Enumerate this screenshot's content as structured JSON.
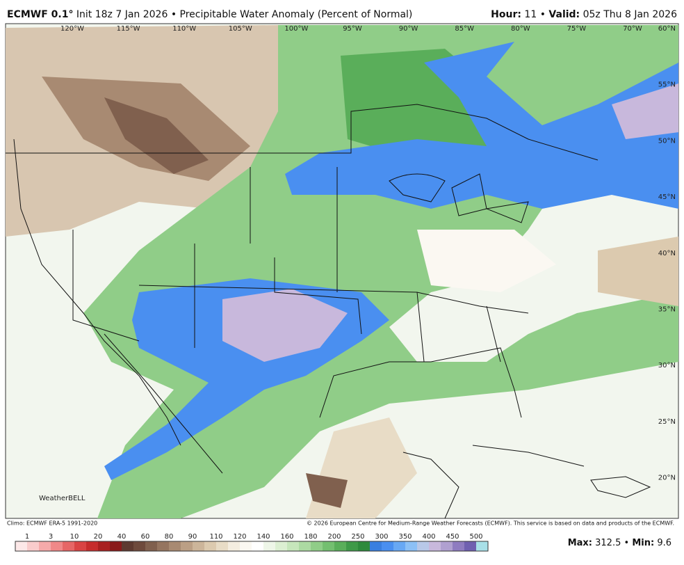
{
  "header": {
    "model": "ECMWF 0.1°",
    "title": "Init 18z 7 Jan 2026 • Precipitable Water Anomaly (Percent of Normal)",
    "hour_label": "Hour:",
    "hour": "11",
    "separator": "•",
    "valid_label": "Valid:",
    "valid": "05z Thu 8 Jan 2026"
  },
  "map": {
    "lon_labels": [
      "120°W",
      "115°W",
      "110°W",
      "105°W",
      "100°W",
      "95°W",
      "90°W",
      "85°W",
      "80°W",
      "75°W",
      "70°W"
    ],
    "lat_labels": [
      "60°N",
      "55°N",
      "50°N",
      "45°N",
      "40°N",
      "35°N",
      "30°N",
      "25°N",
      "20°N"
    ],
    "logo": "WeatherBELL"
  },
  "footer": {
    "climo": "Climo: ECMWF ERA-5 1991-2020",
    "copyright": "© 2026 European Centre for Medium-Range Weather Forecasts (ECMWF). This service is based on data and products of the ECMWF.",
    "max_label": "Max:",
    "max": "312.5",
    "min_label": "Min:",
    "min": "9.6"
  },
  "colorbar": {
    "ticks": [
      1,
      3,
      10,
      20,
      40,
      60,
      80,
      90,
      110,
      120,
      140,
      160,
      180,
      200,
      250,
      300,
      350,
      400,
      450,
      500
    ],
    "colors": [
      "#fde8e8",
      "#f9cccc",
      "#f5aaaa",
      "#f08888",
      "#e66666",
      "#d94444",
      "#c62d2d",
      "#a82020",
      "#8a1a1a",
      "#5e3a30",
      "#6e4a3c",
      "#80604e",
      "#957560",
      "#a88a72",
      "#bb9f85",
      "#ccb59a",
      "#dccaaf",
      "#e8dcc6",
      "#f4ede0",
      "#fbf8f2",
      "#ffffff",
      "#eef6e8",
      "#dcefd2",
      "#c6e6bb",
      "#acdaa2",
      "#90cd88",
      "#74bf70",
      "#5aae5a",
      "#3f9a48",
      "#2e8a3c",
      "#3a7fe0",
      "#4a8ff0",
      "#68a8f4",
      "#8cc0f6",
      "#b8c8e8",
      "#c8b8dc",
      "#b0a0d0",
      "#8f7cc0",
      "#7060b0",
      "#a8e0e8"
    ]
  }
}
